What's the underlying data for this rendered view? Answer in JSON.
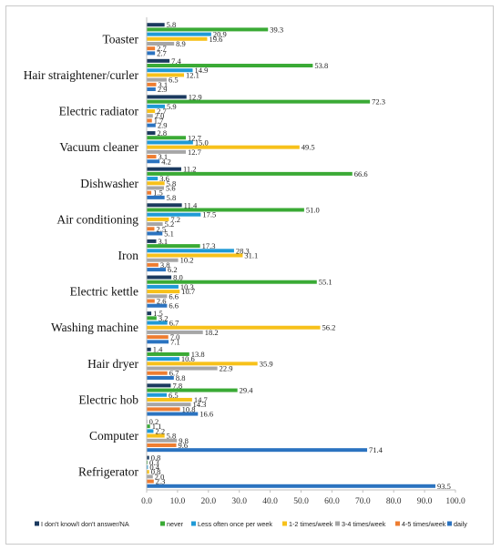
{
  "chart_data": {
    "type": "bar",
    "orientation": "horizontal",
    "categories": [
      "Toaster",
      "Hair straightener/curler",
      "Electric radiator",
      "Vacuum cleaner",
      "Dishwasher",
      "Air conditioning",
      "Iron",
      "Electric kettle",
      "Washing machine",
      "Hair dryer",
      "Electric hob",
      "Computer",
      "Refrigerator"
    ],
    "series": [
      {
        "name": "I don't know/I don't answer/NA",
        "color": "#1b3a5f",
        "values": [
          5.8,
          7.4,
          12.9,
          2.8,
          11.2,
          11.4,
          3.1,
          8.0,
          1.5,
          1.4,
          7.8,
          0.2,
          0.8
        ]
      },
      {
        "name": "never",
        "color": "#3aaa35",
        "values": [
          39.3,
          53.8,
          72.3,
          12.7,
          66.6,
          51.0,
          17.3,
          55.1,
          3.2,
          13.8,
          29.4,
          1.1,
          0.3
        ]
      },
      {
        "name": "Less often once per week",
        "color": "#1f9ad6",
        "values": [
          20.9,
          14.9,
          5.9,
          15.0,
          3.6,
          17.5,
          28.3,
          10.3,
          6.7,
          10.6,
          6.5,
          2.2,
          0.4
        ]
      },
      {
        "name": "1-2 times/week",
        "color": "#f7c11a",
        "values": [
          19.6,
          12.1,
          2.7,
          49.5,
          5.8,
          7.2,
          31.1,
          10.7,
          56.2,
          35.9,
          14.7,
          5.8,
          0.8
        ]
      },
      {
        "name": "3-4 times/week",
        "color": "#a6a6a6",
        "values": [
          8.9,
          6.5,
          2.0,
          12.7,
          5.6,
          5.2,
          10.2,
          6.6,
          18.2,
          22.9,
          14.3,
          9.8,
          2.0
        ]
      },
      {
        "name": "4-5 times/week",
        "color": "#ee7d31",
        "values": [
          2.7,
          3.1,
          1.7,
          3.1,
          1.5,
          2.5,
          3.8,
          2.6,
          7.0,
          6.7,
          10.8,
          9.6,
          2.3
        ]
      },
      {
        "name": "daily",
        "color": "#2b73c0",
        "values": [
          2.7,
          2.9,
          2.9,
          4.2,
          5.8,
          5.1,
          6.2,
          6.6,
          7.1,
          8.8,
          16.6,
          71.4,
          93.5
        ]
      }
    ],
    "xlim": [
      0,
      100
    ],
    "xticks": [
      "0.0",
      "10.0",
      "20.0",
      "30.0",
      "40.0",
      "50.0",
      "60.0",
      "70.0",
      "80.0",
      "90.0",
      "100.0"
    ],
    "title": "",
    "xlabel": "",
    "ylabel": "",
    "grid": false,
    "legend_position": "bottom"
  }
}
